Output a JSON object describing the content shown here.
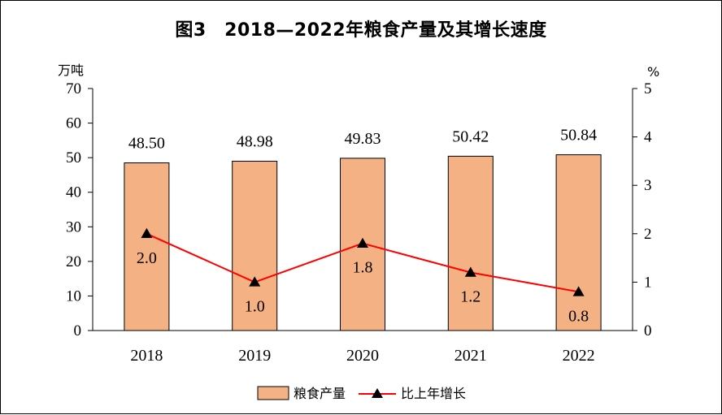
{
  "chart_data": {
    "type": "bar",
    "title": "图3　2018—2022年粮食产量及其增长速度",
    "categories": [
      "2018",
      "2019",
      "2020",
      "2021",
      "2022"
    ],
    "series": [
      {
        "name": "粮食产量",
        "type": "bar",
        "axis": "left",
        "values": [
          48.5,
          48.98,
          49.83,
          50.42,
          50.84
        ],
        "labels": [
          "48.50",
          "48.98",
          "49.83",
          "50.42",
          "50.84"
        ],
        "color": "#F4B183"
      },
      {
        "name": "比上年增长",
        "type": "line",
        "axis": "right",
        "values": [
          2.0,
          1.0,
          1.8,
          1.2,
          0.8
        ],
        "labels": [
          "2.0",
          "1.0",
          "1.8",
          "1.2",
          "0.8"
        ],
        "color": "#FF0000",
        "marker": "triangle"
      }
    ],
    "y_left": {
      "unit": "万吨",
      "ylim": [
        0,
        70
      ],
      "ticks": [
        "0",
        "10",
        "20",
        "30",
        "40",
        "50",
        "60",
        "70"
      ]
    },
    "y_right": {
      "unit": "%",
      "ylim": [
        0,
        5
      ],
      "ticks": [
        "0",
        "1",
        "2",
        "3",
        "4",
        "5"
      ]
    },
    "legend_position": "bottom-center",
    "grid": false
  }
}
